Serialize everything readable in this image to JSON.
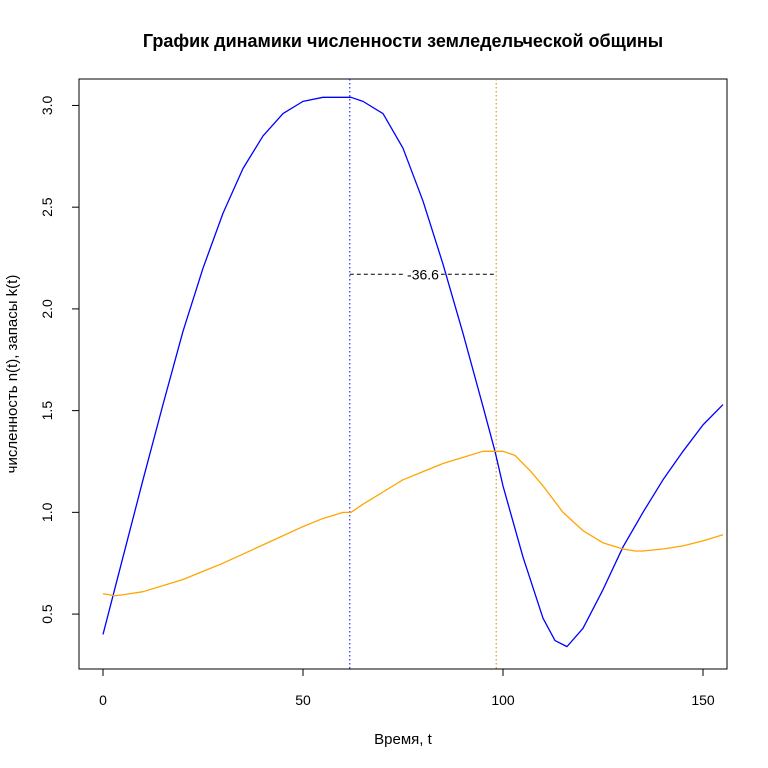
{
  "chart_data": {
    "type": "line",
    "title": "График динамики численности земледельческой общины",
    "xlabel": "Время, t",
    "ylabel": "численность n(t), запасы k(t)",
    "xlim": [
      -6,
      156
    ],
    "ylim": [
      0.23,
      3.13
    ],
    "xticks": [
      0,
      50,
      100,
      150
    ],
    "xtick_labels": [
      "0",
      "50",
      "100",
      "150"
    ],
    "yticks": [
      0.5,
      1.0,
      1.5,
      2.0,
      2.5,
      3.0
    ],
    "ytick_labels": [
      "0.5",
      "1.0",
      "1.5",
      "2.0",
      "2.5",
      "3.0"
    ],
    "grid": false,
    "series": [
      {
        "color": "#0000ff",
        "x": [
          0,
          5,
          10,
          15,
          20,
          25,
          30,
          35,
          40,
          45,
          50,
          55,
          60,
          62,
          65,
          70,
          75,
          80,
          85,
          90,
          95,
          98,
          100,
          105,
          110,
          113,
          116,
          120,
          125,
          130,
          135,
          140,
          145,
          150,
          155
        ],
        "y": [
          0.4,
          0.78,
          1.16,
          1.53,
          1.89,
          2.2,
          2.47,
          2.69,
          2.85,
          2.96,
          3.02,
          3.04,
          3.04,
          3.04,
          3.02,
          2.96,
          2.79,
          2.53,
          2.22,
          1.88,
          1.52,
          1.3,
          1.13,
          0.78,
          0.48,
          0.37,
          0.34,
          0.43,
          0.62,
          0.83,
          1.0,
          1.16,
          1.3,
          1.43,
          1.53
        ]
      },
      {
        "color": "#ffa500",
        "x": [
          0,
          3,
          5,
          10,
          15,
          20,
          25,
          30,
          35,
          40,
          45,
          50,
          55,
          60,
          62,
          65,
          70,
          75,
          80,
          85,
          90,
          95,
          98,
          100,
          103,
          107,
          110,
          115,
          120,
          125,
          130,
          133,
          135,
          140,
          145,
          150,
          155
        ],
        "y": [
          0.6,
          0.59,
          0.595,
          0.61,
          0.64,
          0.67,
          0.71,
          0.75,
          0.795,
          0.84,
          0.885,
          0.93,
          0.97,
          1.0,
          1.0,
          1.04,
          1.1,
          1.16,
          1.2,
          1.24,
          1.27,
          1.3,
          1.3,
          1.3,
          1.28,
          1.2,
          1.13,
          1.0,
          0.91,
          0.85,
          0.82,
          0.81,
          0.81,
          0.82,
          0.835,
          0.86,
          0.89
        ]
      }
    ],
    "vlines": [
      {
        "x": 61.7,
        "color": "#0000ff",
        "style": "dotted"
      },
      {
        "x": 98.3,
        "color": "#cc8400",
        "style": "dotted"
      }
    ],
    "annotation": {
      "text": "-36.6",
      "x1": 61.7,
      "x2": 98.3,
      "y": 2.17
    }
  }
}
